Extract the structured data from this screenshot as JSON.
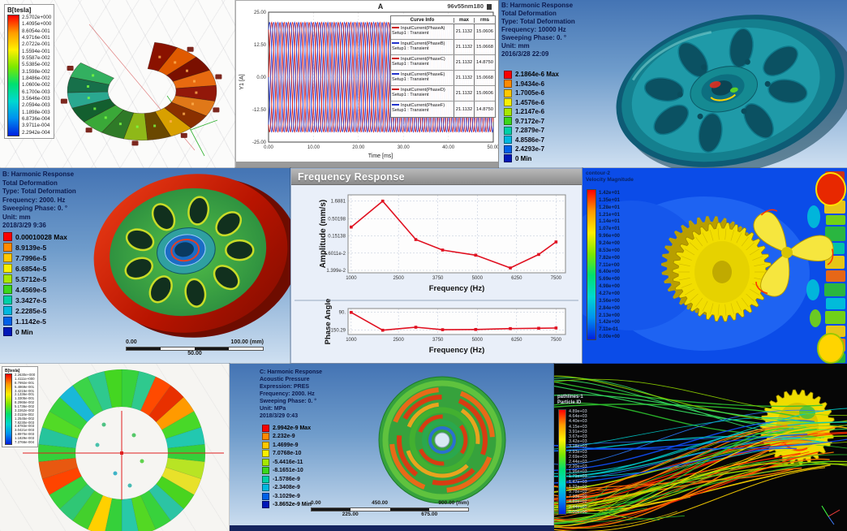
{
  "palette": {
    "legend_squares": [
      "#fb0000",
      "#ff8a00",
      "#ffc800",
      "#f8f000",
      "#a8e800",
      "#3cd81c",
      "#00d0a8",
      "#00b8e0",
      "#0060e8",
      "#0018b8"
    ],
    "rainbow_bar": [
      "#ff0000",
      "#ff9a00",
      "#fff000",
      "#7ce800",
      "#00e070",
      "#00d8d0",
      "#0090f0",
      "#0020e0"
    ],
    "stream_colors": [
      "#2ec22e",
      "#8fd400",
      "#ffd400",
      "#ff7a00",
      "#ff2a00",
      "#00c8c8",
      "#1050ff",
      "#2a7aff",
      "#a0e000",
      "#35e060"
    ]
  },
  "panels": {
    "maxwell_torus": {
      "legend_title": "B[tesla]",
      "legend_values": [
        "2.5702e+000",
        "1.4095e+000",
        "8.6054e-001",
        "4.9716e-001",
        "2.0722e-001",
        "1.5594e-001",
        "9.5587e-002",
        "5.5385e-002",
        "3.1598e-002",
        "1.8486e-002",
        "1.0600e-002",
        "6.1700e-003",
        "3.5646e-003",
        "2.0594e-003",
        "1.1898e-003",
        "6.8736e-004",
        "3.9711e-004",
        "2.2942e-004"
      ]
    },
    "current_plot": {
      "watermark": "96v55nm180",
      "table": {
        "col1": "Curve Info",
        "col2": "max",
        "col3": "rms",
        "rows": [
          {
            "name": "InputCurrent(PhaseA)",
            "setup": "Setup1 : Transient",
            "color": "#cc1111",
            "max": "21.1132",
            "rms": "15.0606"
          },
          {
            "name": "InputCurrent(PhaseB)",
            "setup": "Setup1 : Transient",
            "color": "#2233cc",
            "max": "21.1132",
            "rms": "15.0668"
          },
          {
            "name": "InputCurrent(PhaseC)",
            "setup": "Setup1 : Transient",
            "color": "#cc1111",
            "max": "21.1132",
            "rms": "14.8750"
          },
          {
            "name": "InputCurrent(PhaseE)",
            "setup": "Setup1 : Transient",
            "color": "#2233cc",
            "max": "21.1132",
            "rms": "15.0668"
          },
          {
            "name": "InputCurrent(PhaseD)",
            "setup": "Setup1 : Transient",
            "color": "#cc1111",
            "max": "21.1132",
            "rms": "15.0606"
          },
          {
            "name": "InputCurrent(PhaseF)",
            "setup": "Setup1 : Transient",
            "color": "#2233cc",
            "max": "21.1132",
            "rms": "14.8750"
          }
        ]
      }
    },
    "harmonic_10000": {
      "header": [
        "B: Harmonic Response",
        "Total Deformation",
        "Type: Total Deformation",
        "Frequency: 10000 Hz",
        "Sweeping Phase: 0. °",
        "Unit: mm",
        "2016/3/28 22:09"
      ],
      "legend": [
        "2.1864e-6 Max",
        "1.9434e-6",
        "1.7005e-6",
        "1.4576e-6",
        "1.2147e-6",
        "9.7172e-7",
        "7.2879e-7",
        "4.8586e-7",
        "2.4293e-7",
        "0 Min"
      ]
    },
    "harmonic_2000": {
      "header": [
        "B: Harmonic Response",
        "Total Deformation",
        "Type: Total Deformation",
        "Frequency: 2000. Hz",
        "Sweeping Phase: 0. °",
        "Unit: mm",
        "2018/3/29 9:36"
      ],
      "legend": [
        "0.00010028 Max",
        "8.9139e-5",
        "7.7996e-5",
        "6.6854e-5",
        "5.5712e-5",
        "4.4569e-5",
        "3.3427e-5",
        "2.2285e-5",
        "1.1142e-5",
        "0 Min"
      ],
      "scale": {
        "left": "0.00",
        "right": "100.00 (mm)",
        "mid": "50.00"
      }
    },
    "frequency_response": {
      "window_title": "Frequency Response"
    },
    "cfd_contour": {
      "header": [
        "contour-2",
        "Velocity Magnitude"
      ],
      "legend_values": [
        "1.42e+01",
        "1.35e+01",
        "1.28e+01",
        "1.21e+01",
        "1.14e+01",
        "1.07e+01",
        "9.96e+00",
        "9.24e+00",
        "8.53e+00",
        "7.82e+00",
        "7.11e+00",
        "6.40e+00",
        "5.69e+00",
        "4.98e+00",
        "4.27e+00",
        "3.56e+00",
        "2.84e+00",
        "2.13e+00",
        "1.42e+00",
        "7.11e-01",
        "0.00e+00"
      ]
    },
    "stator_ring": {
      "legend_title": "B[tesla]",
      "legend_values": [
        "2.2630e+000",
        "1.4111e+000",
        "8.7992e-001",
        "5.4869e-001",
        "3.4215e-001",
        "2.1336e-001",
        "1.3305e-001",
        "8.2965e-002",
        "5.1736e-002",
        "3.2262e-002",
        "2.0118e-002",
        "1.2545e-002",
        "7.8230e-003",
        "4.8783e-003",
        "3.0421e-003",
        "1.8970e-003",
        "1.1829e-003",
        "7.3766e-004"
      ]
    },
    "acoustic": {
      "header": [
        "C: Harmonic Response",
        "Acoustic Pressure",
        "Expression: PRES",
        "Frequency: 2000. Hz",
        "Sweeping Phase: 0. °",
        "Unit: MPa",
        "2018/3/29 0:43"
      ],
      "legend": [
        "2.9942e-9 Max",
        "2.232e-9",
        "1.4699e-9",
        "7.0768e-10",
        "-5.4416e-11",
        "-8.1651e-10",
        "-1.5786e-9",
        "-2.3408e-9",
        "-3.1029e-9",
        "-3.8652e-9 Min"
      ],
      "scale": {
        "top": [
          "0.00",
          "450.00",
          "900.00 (mm)"
        ],
        "bottom": [
          "225.00",
          "675.00"
        ]
      }
    },
    "pathlines": {
      "header": [
        "pathlines-1",
        "Particle ID"
      ],
      "legend_values": [
        "4.89e+03",
        "4.64e+03",
        "4.40e+03",
        "4.15e+03",
        "3.91e+03",
        "3.67e+03",
        "3.42e+03",
        "3.18e+03",
        "2.93e+03",
        "2.69e+03",
        "2.44e+03",
        "2.20e+03",
        "1.96e+03",
        "1.71e+03",
        "1.47e+03",
        "1.22e+03",
        "9.78e+02",
        "7.33e+02",
        "4.89e+02",
        "2.44e+02",
        "0.00e+00"
      ]
    }
  },
  "chart_data": [
    {
      "id": "phase_currents",
      "type": "line",
      "title": "A",
      "xlabel": "Time [ms]",
      "ylabel": "Y1 [A]",
      "xlim": [
        0,
        50
      ],
      "ylim": [
        -25,
        25
      ],
      "xticks": [
        0,
        10,
        20,
        30,
        40,
        50
      ],
      "xtick_labels": [
        "0.00",
        "10.00",
        "20.00",
        "30.00",
        "40.00",
        "50.00"
      ],
      "yticks": [
        -25,
        -12.5,
        0,
        12.5,
        25
      ],
      "ytick_labels": [
        "-25.00",
        "-12.50",
        "0.00",
        "12.50",
        "25.00"
      ],
      "waveform": {
        "amplitude": 21.1132,
        "period_ms": 2.78,
        "series": [
          {
            "name": "InputCurrent(PhaseA)",
            "phase_deg": 0,
            "color": "#cc1111"
          },
          {
            "name": "InputCurrent(PhaseB)",
            "phase_deg": 60,
            "color": "#2233cc"
          },
          {
            "name": "InputCurrent(PhaseC)",
            "phase_deg": 120,
            "color": "#cc1111"
          },
          {
            "name": "InputCurrent(PhaseE)",
            "phase_deg": 180,
            "color": "#2233cc"
          },
          {
            "name": "InputCurrent(PhaseD)",
            "phase_deg": 240,
            "color": "#cc1111"
          },
          {
            "name": "InputCurrent(PhaseF)",
            "phase_deg": 300,
            "color": "#2233cc"
          }
        ]
      }
    },
    {
      "id": "freq_amplitude",
      "type": "line",
      "ylabel": "Amplitude (mm/s)",
      "xlabel": "Frequency (Hz)",
      "yscale": "log",
      "xlim": [
        900,
        7800
      ],
      "ylim": [
        0.0118,
        2.6
      ],
      "xticks": [
        1000,
        2500,
        3750,
        5000,
        6250,
        7500
      ],
      "yticks": [
        1.6881,
        0.50198,
        0.15138,
        0.046011,
        0.01399
      ],
      "ytick_labels": [
        "1.6881",
        "0.50198",
        "0.15138",
        "4.6011e-2",
        "1.399e-2"
      ],
      "x": [
        1000,
        2000,
        3050,
        3900,
        4950,
        6050,
        6950,
        7500
      ],
      "y": [
        0.28,
        1.6881,
        0.118,
        0.057,
        0.04,
        0.0165,
        0.042,
        0.1
      ],
      "color": "#e01020"
    },
    {
      "id": "freq_phase",
      "type": "line",
      "ylabel": "Phase Angle",
      "xlabel": "Frequency (Hz)",
      "xlim": [
        900,
        7800
      ],
      "ylim": [
        -210,
        140
      ],
      "xticks": [
        1000,
        2500,
        3750,
        5000,
        6250,
        7500
      ],
      "yticks": [
        90,
        -150.29
      ],
      "ytick_labels": [
        "90.",
        "-150.29"
      ],
      "x": [
        1000,
        2000,
        3050,
        3900,
        4950,
        6050,
        6950,
        7500
      ],
      "y": [
        88,
        -152,
        -112,
        -145,
        -142,
        -130,
        -126,
        -122
      ],
      "color": "#e01020"
    }
  ]
}
